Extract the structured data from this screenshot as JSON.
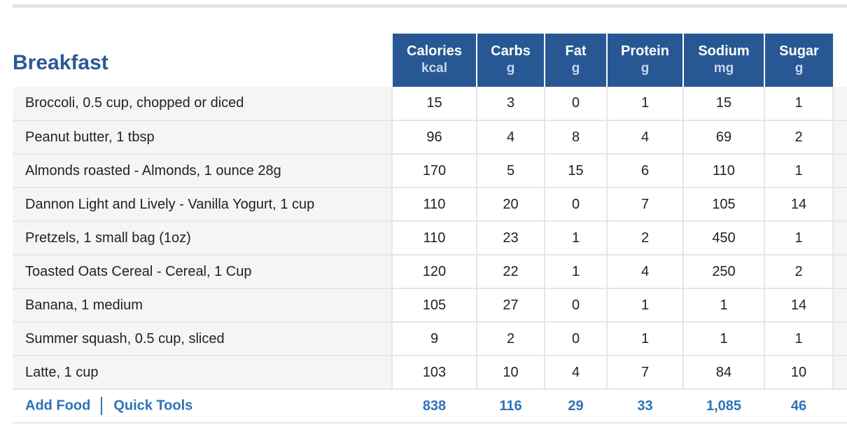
{
  "meal": {
    "title": "Breakfast"
  },
  "columns": [
    {
      "name": "Calories",
      "unit": "kcal"
    },
    {
      "name": "Carbs",
      "unit": "g"
    },
    {
      "name": "Fat",
      "unit": "g"
    },
    {
      "name": "Protein",
      "unit": "g"
    },
    {
      "name": "Sodium",
      "unit": "mg"
    },
    {
      "name": "Sugar",
      "unit": "g"
    }
  ],
  "foods": [
    {
      "name": "Broccoli, 0.5 cup, chopped or diced",
      "calories": "15",
      "carbs": "3",
      "fat": "0",
      "protein": "1",
      "sodium": "15",
      "sugar": "1"
    },
    {
      "name": "Peanut butter, 1 tbsp",
      "calories": "96",
      "carbs": "4",
      "fat": "8",
      "protein": "4",
      "sodium": "69",
      "sugar": "2"
    },
    {
      "name": "Almonds roasted - Almonds, 1 ounce 28g",
      "calories": "170",
      "carbs": "5",
      "fat": "15",
      "protein": "6",
      "sodium": "110",
      "sugar": "1"
    },
    {
      "name": "Dannon Light and Lively - Vanilla Yogurt, 1 cup",
      "calories": "110",
      "carbs": "20",
      "fat": "0",
      "protein": "7",
      "sodium": "105",
      "sugar": "14"
    },
    {
      "name": "Pretzels, 1 small bag (1oz)",
      "calories": "110",
      "carbs": "23",
      "fat": "1",
      "protein": "2",
      "sodium": "450",
      "sugar": "1"
    },
    {
      "name": "Toasted Oats Cereal - Cereal, 1 Cup",
      "calories": "120",
      "carbs": "22",
      "fat": "1",
      "protein": "4",
      "sodium": "250",
      "sugar": "2"
    },
    {
      "name": "Banana, 1 medium",
      "calories": "105",
      "carbs": "27",
      "fat": "0",
      "protein": "1",
      "sodium": "1",
      "sugar": "14"
    },
    {
      "name": "Summer squash, 0.5 cup, sliced",
      "calories": "9",
      "carbs": "2",
      "fat": "0",
      "protein": "1",
      "sodium": "1",
      "sugar": "1"
    },
    {
      "name": "Latte, 1 cup",
      "calories": "103",
      "carbs": "10",
      "fat": "4",
      "protein": "7",
      "sodium": "84",
      "sugar": "10"
    }
  ],
  "actions": {
    "add_food": "Add Food",
    "quick_tools": "Quick Tools"
  },
  "totals": {
    "calories": "838",
    "carbs": "116",
    "fat": "29",
    "protein": "33",
    "sodium": "1,085",
    "sugar": "46"
  },
  "colors": {
    "header_blue": "#275894",
    "title_blue": "#2c5996",
    "link_blue": "#2e73b5",
    "row_gray": "#f5f5f5"
  }
}
